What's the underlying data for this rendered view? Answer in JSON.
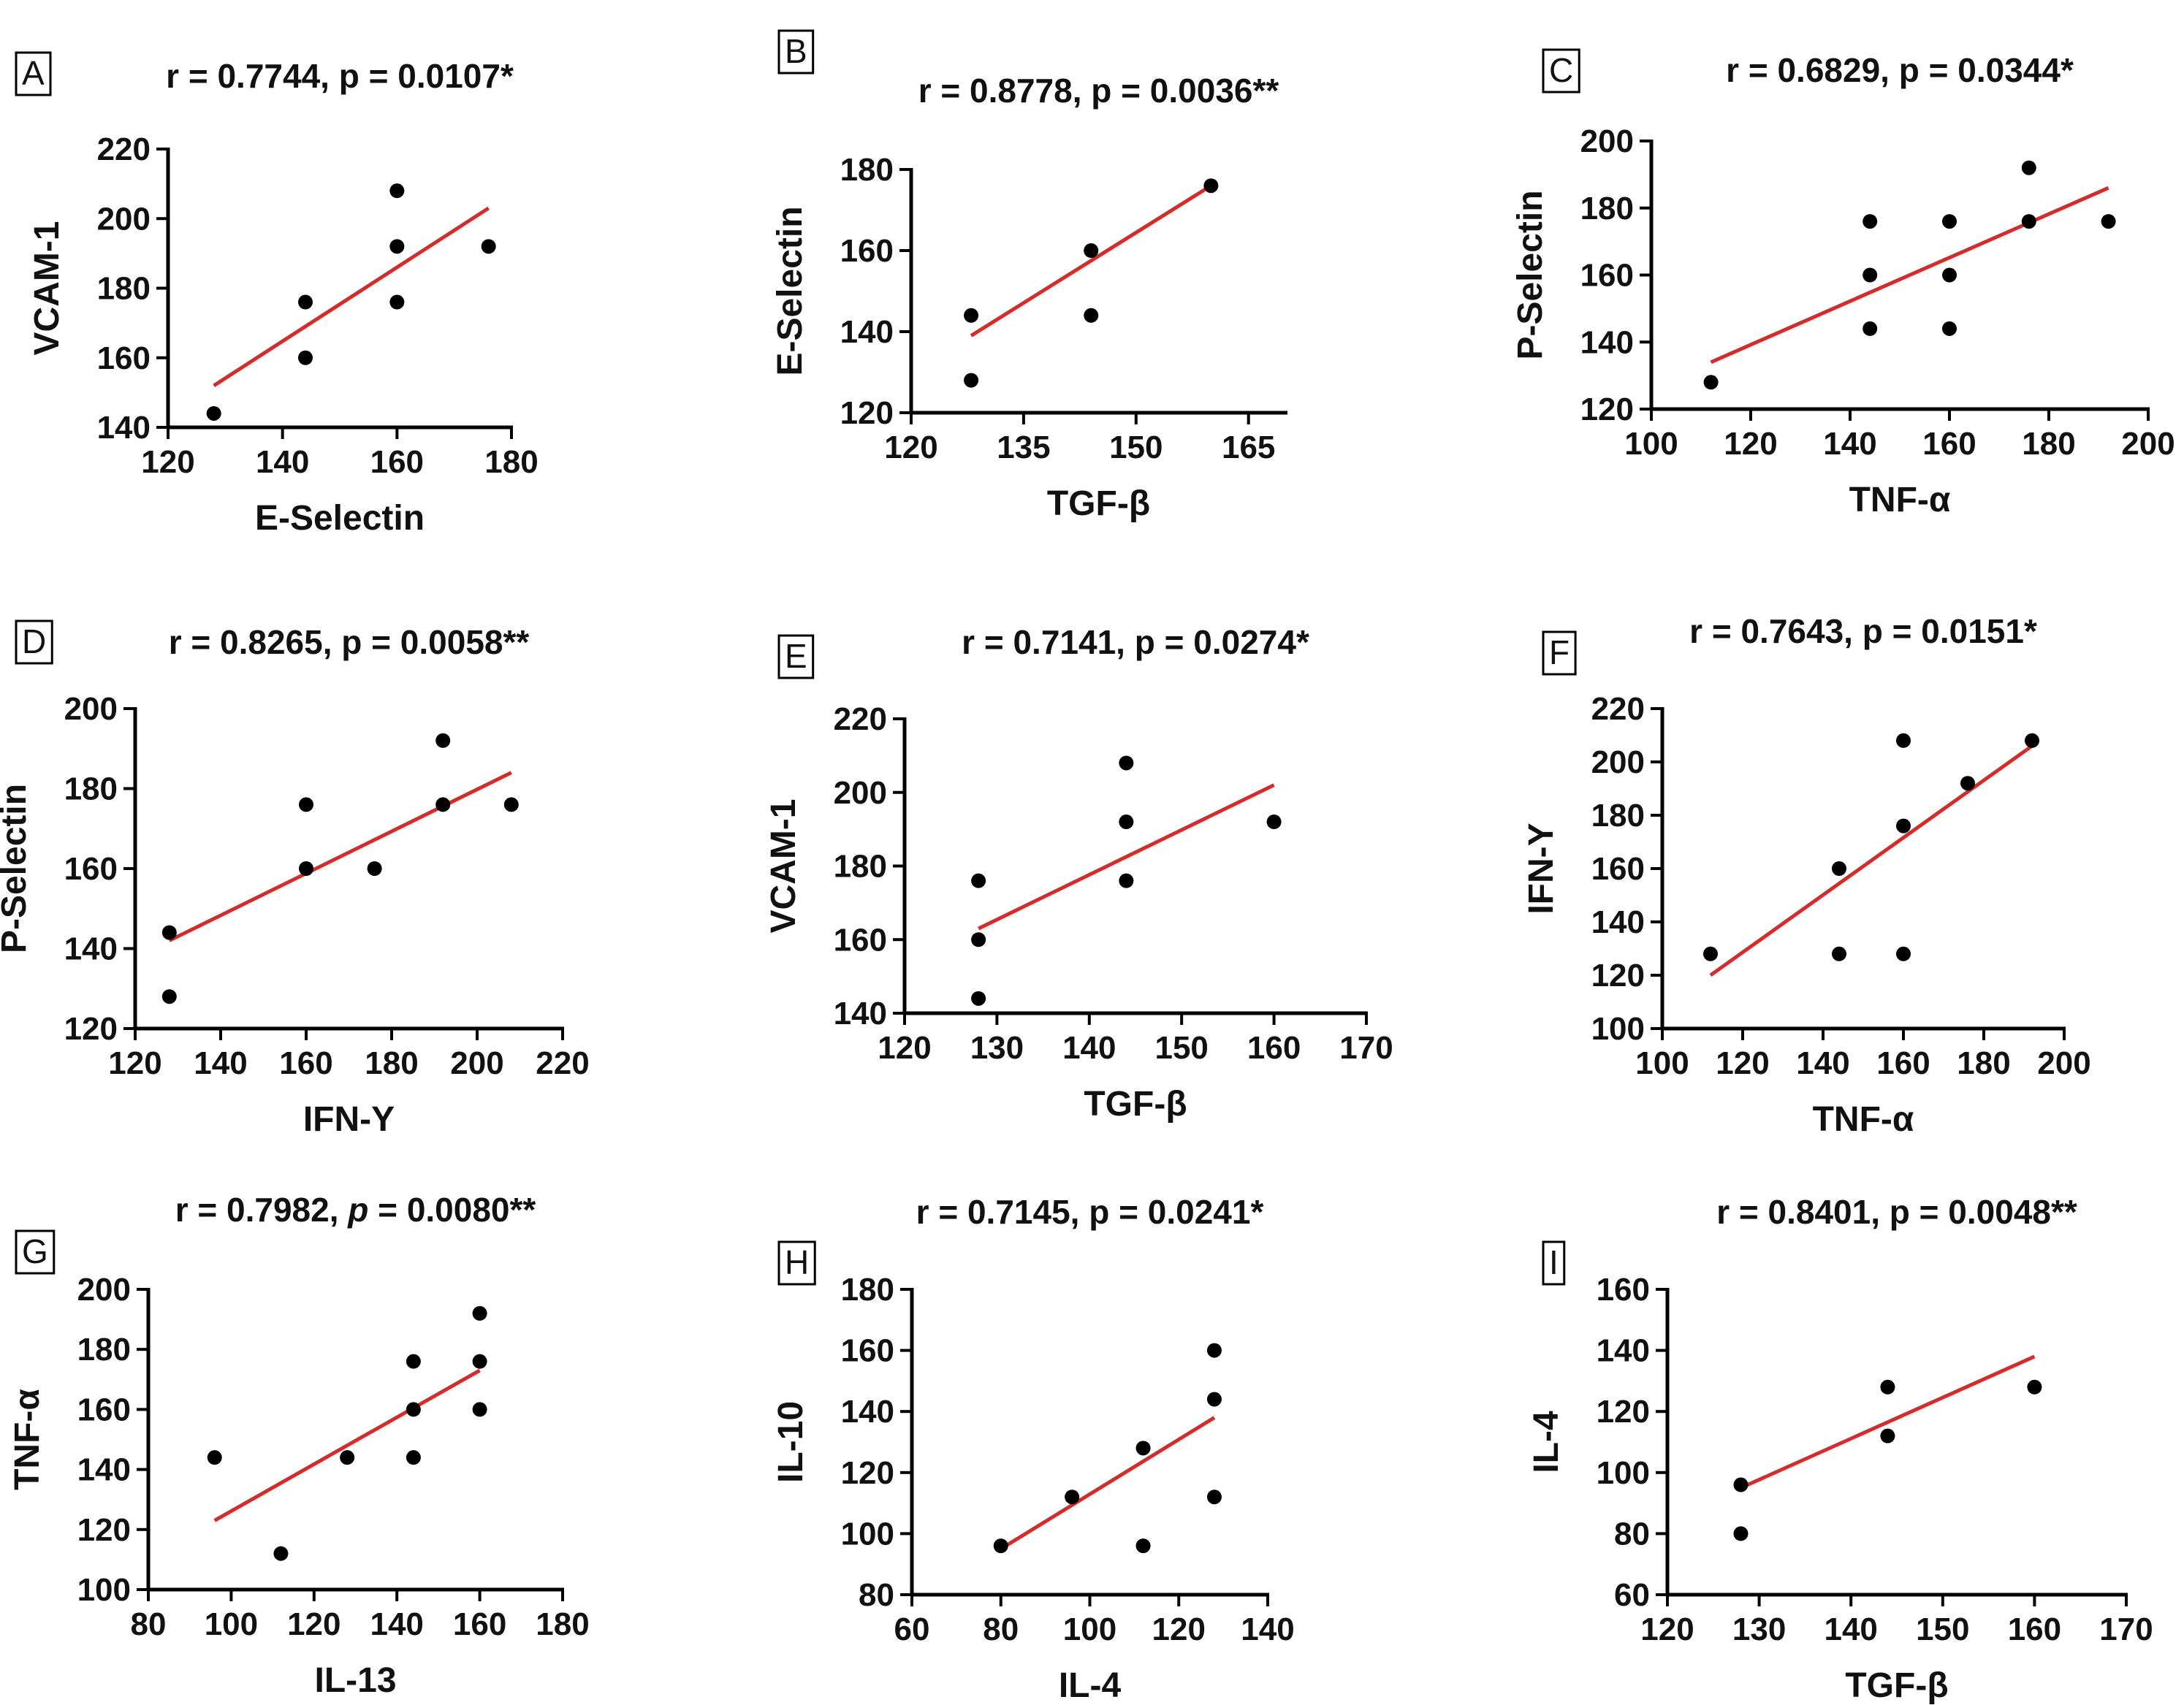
{
  "chart_data": [
    {
      "type": "scatter",
      "panel": "A",
      "title": "r = 0.7744, p = 0.0107*",
      "xlabel": "E-Selectin",
      "ylabel": "VCAM-1",
      "xlim": [
        120,
        180
      ],
      "ylim": [
        140,
        220
      ],
      "xticks": [
        120,
        140,
        160,
        180
      ],
      "yticks": [
        140,
        160,
        180,
        200,
        220
      ],
      "points": [
        [
          128,
          144
        ],
        [
          144,
          160
        ],
        [
          144,
          176
        ],
        [
          160,
          176
        ],
        [
          160,
          192
        ],
        [
          160,
          208
        ],
        [
          176,
          192
        ]
      ],
      "fit": [
        [
          128,
          152
        ],
        [
          176,
          203
        ]
      ],
      "fit_color": "#d42b2b",
      "point_color": "#000000"
    },
    {
      "type": "scatter",
      "panel": "B",
      "title": "r = 0.8778, p = 0.0036**",
      "xlabel": "TGF-β",
      "ylabel": "E-Selectin",
      "xlim": [
        120,
        170
      ],
      "ylim": [
        120,
        180
      ],
      "xticks": [
        120,
        135,
        150,
        165
      ],
      "yticks": [
        120,
        140,
        160,
        180
      ],
      "points": [
        [
          128,
          128
        ],
        [
          128,
          144
        ],
        [
          144,
          144
        ],
        [
          144,
          160
        ],
        [
          160,
          176
        ]
      ],
      "fit": [
        [
          128,
          139
        ],
        [
          160,
          176
        ]
      ],
      "fit_color": "#d42b2b",
      "point_color": "#000000"
    },
    {
      "type": "scatter",
      "panel": "C",
      "title": "r = 0.6829, p = 0.0344*",
      "xlabel": "TNF-α",
      "ylabel": "P-Selectin",
      "xlim": [
        100,
        200
      ],
      "ylim": [
        120,
        200
      ],
      "xticks": [
        100,
        120,
        140,
        160,
        180,
        200
      ],
      "yticks": [
        120,
        140,
        160,
        180,
        200
      ],
      "points": [
        [
          112,
          128
        ],
        [
          144,
          144
        ],
        [
          144,
          160
        ],
        [
          144,
          176
        ],
        [
          160,
          144
        ],
        [
          160,
          160
        ],
        [
          160,
          176
        ],
        [
          176,
          176
        ],
        [
          176,
          192
        ],
        [
          192,
          176
        ]
      ],
      "fit": [
        [
          112,
          134
        ],
        [
          192,
          186
        ]
      ],
      "fit_color": "#d42b2b",
      "point_color": "#000000"
    },
    {
      "type": "scatter",
      "panel": "D",
      "title": "r = 0.8265, p = 0.0058**",
      "xlabel": "IFN-Y",
      "ylabel": "P-Selectin",
      "xlim": [
        120,
        220
      ],
      "ylim": [
        120,
        200
      ],
      "xticks": [
        120,
        140,
        160,
        180,
        200,
        220
      ],
      "yticks": [
        120,
        140,
        160,
        180,
        200
      ],
      "points": [
        [
          128,
          128
        ],
        [
          128,
          144
        ],
        [
          160,
          160
        ],
        [
          160,
          176
        ],
        [
          176,
          160
        ],
        [
          192,
          176
        ],
        [
          192,
          192
        ],
        [
          208,
          176
        ]
      ],
      "fit": [
        [
          128,
          142
        ],
        [
          208,
          184
        ]
      ],
      "fit_color": "#d42b2b",
      "point_color": "#000000"
    },
    {
      "type": "scatter",
      "panel": "E",
      "title": "r = 0.7141, p = 0.0274*",
      "xlabel": "TGF-β",
      "ylabel": "VCAM-1",
      "xlim": [
        120,
        170
      ],
      "ylim": [
        140,
        220
      ],
      "xticks": [
        120,
        130,
        140,
        150,
        160,
        170
      ],
      "yticks": [
        140,
        160,
        180,
        200,
        220
      ],
      "points": [
        [
          128,
          144
        ],
        [
          128,
          160
        ],
        [
          128,
          176
        ],
        [
          144,
          176
        ],
        [
          144,
          192
        ],
        [
          144,
          208
        ],
        [
          160,
          192
        ]
      ],
      "fit": [
        [
          128,
          163
        ],
        [
          160,
          202
        ]
      ],
      "fit_color": "#d42b2b",
      "point_color": "#000000"
    },
    {
      "type": "scatter",
      "panel": "F",
      "title": "r = 0.7643, p = 0.0151*",
      "xlabel": "TNF-α",
      "ylabel": "IFN-Y",
      "xlim": [
        100,
        200
      ],
      "ylim": [
        100,
        220
      ],
      "xticks": [
        100,
        120,
        140,
        160,
        180,
        200
      ],
      "yticks": [
        100,
        120,
        140,
        160,
        180,
        200,
        220
      ],
      "points": [
        [
          112,
          128
        ],
        [
          144,
          128
        ],
        [
          144,
          160
        ],
        [
          160,
          128
        ],
        [
          160,
          176
        ],
        [
          160,
          208
        ],
        [
          176,
          192
        ],
        [
          192,
          208
        ]
      ],
      "fit": [
        [
          112,
          120
        ],
        [
          192,
          206
        ]
      ],
      "fit_color": "#d42b2b",
      "point_color": "#000000"
    },
    {
      "type": "scatter",
      "panel": "G",
      "title_parts": [
        "r = 0.7982, ",
        "p",
        " = 0.0080**"
      ],
      "xlabel": "IL-13",
      "ylabel": "TNF-α",
      "xlim": [
        80,
        180
      ],
      "ylim": [
        100,
        200
      ],
      "xticks": [
        80,
        100,
        120,
        140,
        160,
        180
      ],
      "yticks": [
        100,
        120,
        140,
        160,
        180,
        200
      ],
      "points": [
        [
          96,
          144
        ],
        [
          112,
          112
        ],
        [
          128,
          144
        ],
        [
          144,
          144
        ],
        [
          144,
          160
        ],
        [
          144,
          176
        ],
        [
          160,
          160
        ],
        [
          160,
          176
        ],
        [
          160,
          192
        ]
      ],
      "fit": [
        [
          96,
          123
        ],
        [
          160,
          173
        ]
      ],
      "fit_color": "#d42b2b",
      "point_color": "#000000"
    },
    {
      "type": "scatter",
      "panel": "H",
      "title": "r = 0.7145, p = 0.0241*",
      "xlabel": "IL-4",
      "ylabel": "IL-10",
      "xlim": [
        60,
        140
      ],
      "ylim": [
        80,
        180
      ],
      "xticks": [
        60,
        80,
        100,
        120,
        140
      ],
      "yticks": [
        80,
        100,
        120,
        140,
        160,
        180
      ],
      "points": [
        [
          80,
          96
        ],
        [
          96,
          112
        ],
        [
          112,
          96
        ],
        [
          112,
          128
        ],
        [
          128,
          112
        ],
        [
          128,
          144
        ],
        [
          128,
          160
        ]
      ],
      "fit": [
        [
          80,
          95
        ],
        [
          128,
          138
        ]
      ],
      "fit_color": "#d42b2b",
      "point_color": "#000000"
    },
    {
      "type": "scatter",
      "panel": "I",
      "title": "r = 0.8401, p = 0.0048**",
      "xlabel": "TGF-β",
      "ylabel": "IL-4",
      "xlim": [
        120,
        170
      ],
      "ylim": [
        60,
        160
      ],
      "xticks": [
        120,
        130,
        140,
        150,
        160,
        170
      ],
      "yticks": [
        60,
        80,
        100,
        120,
        140,
        160
      ],
      "points": [
        [
          128,
          80
        ],
        [
          128,
          96
        ],
        [
          144,
          112
        ],
        [
          144,
          128
        ],
        [
          160,
          128
        ]
      ],
      "fit": [
        [
          128,
          95
        ],
        [
          160,
          138
        ]
      ],
      "fit_color": "#d42b2b",
      "point_color": "#000000"
    }
  ]
}
